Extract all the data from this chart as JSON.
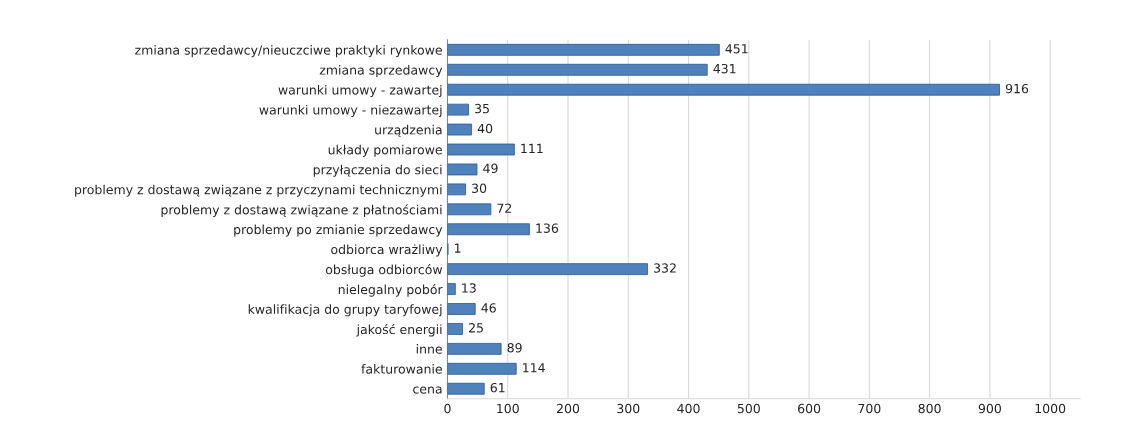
{
  "chart_data": {
    "type": "bar",
    "orientation": "horizontal",
    "categories": [
      "zmiana sprzedawcy/nieuczciwe praktyki rynkowe",
      "zmiana sprzedawcy",
      "warunki umowy - zawartej",
      "warunki umowy - niezawartej",
      "urządzenia",
      "układy pomiarowe",
      "przyłączenia do sieci",
      "problemy z dostawą związane z przyczynami technicznymi",
      "problemy z dostawą związane z płatnościami",
      "problemy po zmianie sprzedawcy",
      "odbiorca wrażliwy",
      "obsługa odbiorców",
      "nielegalny pobór",
      "kwalifikacja do grupy taryfowej",
      "jakość energii",
      "inne",
      "fakturowanie",
      "cena"
    ],
    "values": [
      451,
      431,
      916,
      35,
      40,
      111,
      49,
      30,
      72,
      136,
      1,
      332,
      13,
      46,
      25,
      89,
      114,
      61
    ],
    "color": "#4f81bd",
    "xlim": [
      0,
      1050
    ],
    "xticks": [
      0,
      100,
      200,
      300,
      400,
      500,
      600,
      700,
      800,
      900,
      1000
    ],
    "grid": "x",
    "data_labels": true
  }
}
